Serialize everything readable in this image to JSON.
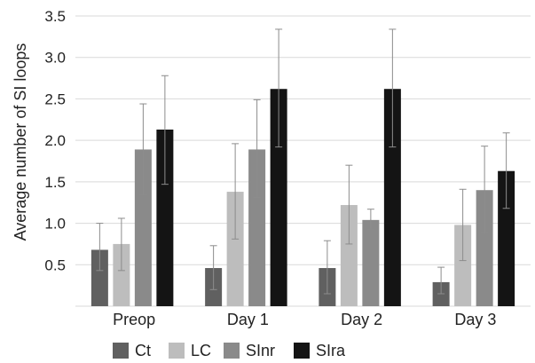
{
  "chart_data": {
    "type": "bar",
    "title": "",
    "xlabel": "",
    "ylabel": "Average number of SI loops",
    "ylim": [
      0,
      3.5
    ],
    "y_ticks": [
      "0.5",
      "1.0",
      "1.5",
      "2.0",
      "2.5",
      "3.0",
      "3.5"
    ],
    "categories": [
      "Preop",
      "Day 1",
      "Day 2",
      "Day 3"
    ],
    "legend_position": "bottom",
    "grid": true,
    "series": [
      {
        "name": "Ct",
        "color": "#606060",
        "values": [
          0.68,
          0.46,
          0.46,
          0.29
        ],
        "error_low": [
          0.43,
          0.2,
          0.15,
          0.15
        ],
        "error_high": [
          1.0,
          0.73,
          0.79,
          0.47
        ]
      },
      {
        "name": "LC",
        "color": "#bdbdbd",
        "values": [
          0.75,
          1.38,
          1.22,
          0.98
        ],
        "error_low": [
          0.43,
          0.81,
          0.75,
          0.55
        ],
        "error_high": [
          1.06,
          1.96,
          1.7,
          1.41
        ]
      },
      {
        "name": "SInr",
        "color": "#8a8a8a",
        "values": [
          1.89,
          1.89,
          1.04,
          1.4
        ],
        "error_low": [
          1.34,
          1.31,
          0.93,
          0.88
        ],
        "error_high": [
          2.44,
          2.49,
          1.17,
          1.93
        ]
      },
      {
        "name": "SIra",
        "color": "#141414",
        "values": [
          2.13,
          2.62,
          2.62,
          1.63
        ],
        "error_low": [
          1.47,
          1.92,
          1.92,
          1.18
        ],
        "error_high": [
          2.78,
          3.34,
          3.34,
          2.09
        ]
      }
    ]
  }
}
